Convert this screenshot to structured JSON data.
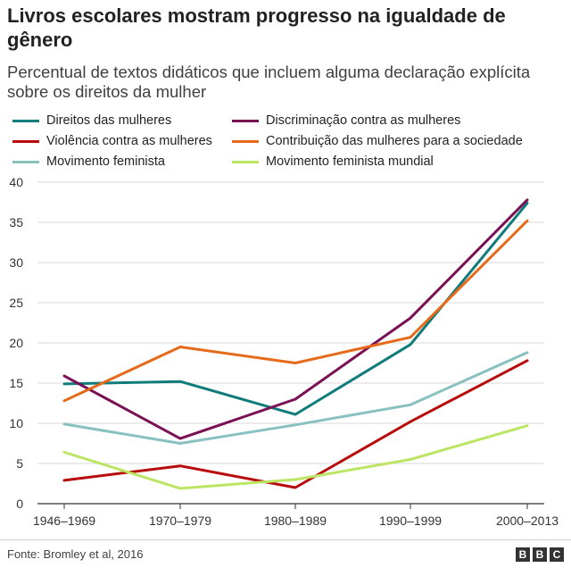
{
  "header": {
    "title": "Livros escolares mostram progresso na igualdade de gênero",
    "subtitle": "Percentual de textos didáticos que incluem alguma declaração explícita sobre os direitos da mulher"
  },
  "footer": {
    "source": "Fonte: Bromley et al, 2016",
    "logo_letters": [
      "B",
      "B",
      "C"
    ]
  },
  "chart_data": {
    "type": "line",
    "categories": [
      "1946–1969",
      "1970–1979",
      "1980–1989",
      "1990–1999",
      "2000–2013"
    ],
    "ylim": [
      0,
      40
    ],
    "yticks": [
      0,
      5,
      10,
      15,
      20,
      25,
      30,
      35,
      40
    ],
    "grid": true,
    "legend_position": "top",
    "series": [
      {
        "name": "Direitos das mulheres",
        "color": "#0f7c7b",
        "values": [
          14.9,
          15.2,
          11.1,
          19.8,
          37.4
        ]
      },
      {
        "name": "Discriminação contra as mulheres",
        "color": "#7a1155",
        "values": [
          15.9,
          8.1,
          13.0,
          23.1,
          37.8
        ]
      },
      {
        "name": "Violência contra as mulheres",
        "color": "#b80b0b",
        "values": [
          2.9,
          4.7,
          2.0,
          10.2,
          17.8
        ]
      },
      {
        "name": "Contribuição das mulheres para a sociedade",
        "color": "#e56a1a",
        "values": [
          12.8,
          19.5,
          17.5,
          20.7,
          35.2
        ]
      },
      {
        "name": "Movimento feminista",
        "color": "#88c1c0",
        "values": [
          9.9,
          7.5,
          9.8,
          12.3,
          18.8
        ]
      },
      {
        "name": "Movimento feminista mundial",
        "color": "#bde564",
        "values": [
          6.4,
          1.9,
          3.0,
          5.5,
          9.7
        ]
      }
    ]
  }
}
